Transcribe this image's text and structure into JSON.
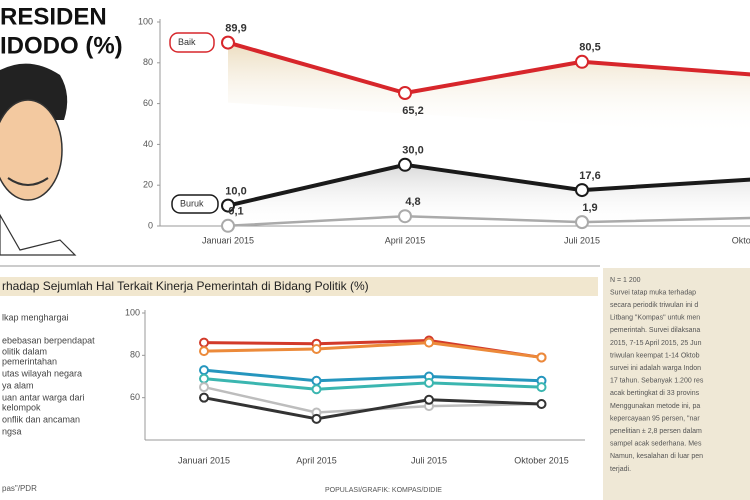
{
  "header": {
    "title_line1": "RESIDEN",
    "title_line2": "IDODO (%)"
  },
  "chart_data": [
    {
      "type": "line",
      "categories": [
        "Januari 2015",
        "April 2015",
        "Juli 2015",
        "Oktober 2015"
      ],
      "ylim": [
        0,
        100
      ],
      "yticks": [
        0,
        20,
        40,
        60,
        80,
        100
      ],
      "grid": false,
      "series": [
        {
          "name": "Baik",
          "color": "#d7262b",
          "values": [
            89.9,
            65.2,
            80.5,
            74
          ],
          "value_labels": [
            "89,9",
            "65,2",
            "80,5",
            null
          ]
        },
        {
          "name": "Buruk",
          "color": "#1a1a1a",
          "values": [
            10.0,
            30.0,
            17.6,
            23
          ],
          "value_labels": [
            "10,0",
            "30,0",
            "17,6",
            null
          ]
        },
        {
          "color": "#aaaaaa",
          "values": [
            0.1,
            4.8,
            1.9,
            4
          ],
          "value_labels": [
            "0,1",
            "4,8",
            "1,9",
            null
          ]
        }
      ]
    },
    {
      "type": "line",
      "title": "rhadap Sejumlah Hal Terkait Kinerja Pemerintah di Bidang Politik (%)",
      "categories": [
        "Januari 2015",
        "April 2015",
        "Juli 2015",
        "Oktober 2015"
      ],
      "ylim": [
        40,
        100
      ],
      "yticks": [
        60,
        80,
        100
      ],
      "grid": false,
      "series": [
        {
          "color": "#d23a2a",
          "values": [
            86,
            85.5,
            87,
            79
          ]
        },
        {
          "color": "#ec8a3a",
          "values": [
            82,
            83,
            86,
            79
          ]
        },
        {
          "color": "#2596be",
          "values": [
            73,
            68,
            70,
            68
          ]
        },
        {
          "color": "#3bb6b0",
          "values": [
            69,
            64,
            67,
            65
          ]
        },
        {
          "color": "#bdbdbd",
          "values": [
            65,
            53,
            56,
            57
          ]
        },
        {
          "color": "#333333",
          "values": [
            60,
            50,
            59,
            57
          ]
        }
      ]
    }
  ],
  "side_labels": [
    "lkap menghargai",
    "ebebasan berpendapat",
    "olitik dalam",
    "pemerintahan",
    "utas wilayah negara",
    "ya alam",
    "uan antar warga dari",
    "kelompok",
    "onflik dan ancaman",
    "ngsa"
  ],
  "notes": [
    "N = 1 200",
    "Survei tatap muka terhadap",
    "secara periodik triwulan ini d",
    "Litbang \"Kompas\" untuk men",
    "pemerintah. Survei dilaksana",
    "2015, 7-15 April 2015, 25 Jun",
    "triwulan keempat 1-14 Oktob",
    "survei ini adalah warga Indon",
    "17 tahun. Sebanyak 1.200 res",
    "acak bertingkat di 33 provins",
    "Menggunakan metode ini, pa",
    "kepercayaan 95 persen, \"nar",
    "penelitian ± 2,8 persen dalam",
    "sampel acak sederhana. Mes",
    "Namun, kesalahan di luar pen",
    "terjadi."
  ],
  "footer": {
    "source": "pas\"/PDR",
    "credit": "POPULASI/GRAFIK: KOMPAS/DIDIE"
  }
}
